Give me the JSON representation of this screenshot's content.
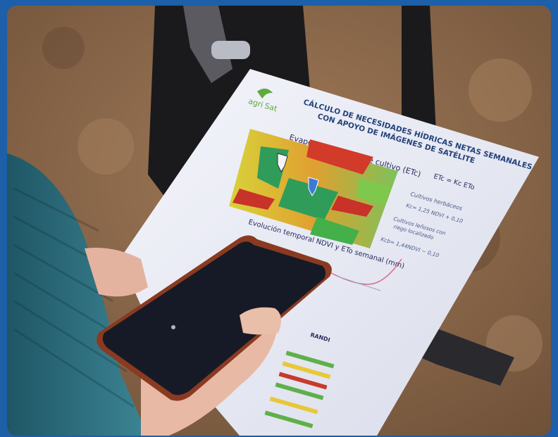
{
  "document": {
    "logo_line1": "agri",
    "logo_line2": "Sat",
    "title_line1": "CÁLCULO DE NECESIDADES HÍDRICAS NETAS SEMANALES",
    "title_line2": "CON APOYO DE IMÁGENES DE SATÉLITE",
    "section1": "Evapotranspiración de cultivo (ETc)",
    "formula": "ETc = Kc ETo",
    "note1_title": "Cultivos herbáceos",
    "note1_formula": "Kc= 1,25 NDVI + 0,10",
    "note2_title": "Cultivos leñosos con",
    "note2_sub": "riego localizado",
    "note2_formula": "Kcb= 1,44NDVI − 0,10",
    "section2": "Evolución temporal NDVI y ETo semanal (mm)",
    "table_header": "RANDI"
  },
  "colors": {
    "frame": "#1d5fa8",
    "soil": "#8a6a50",
    "sweater": "#2f6f7e",
    "phone": "#161a26",
    "paper": "#eef0f8"
  },
  "icons": [
    "logo-icon",
    "map-pin-icon"
  ]
}
